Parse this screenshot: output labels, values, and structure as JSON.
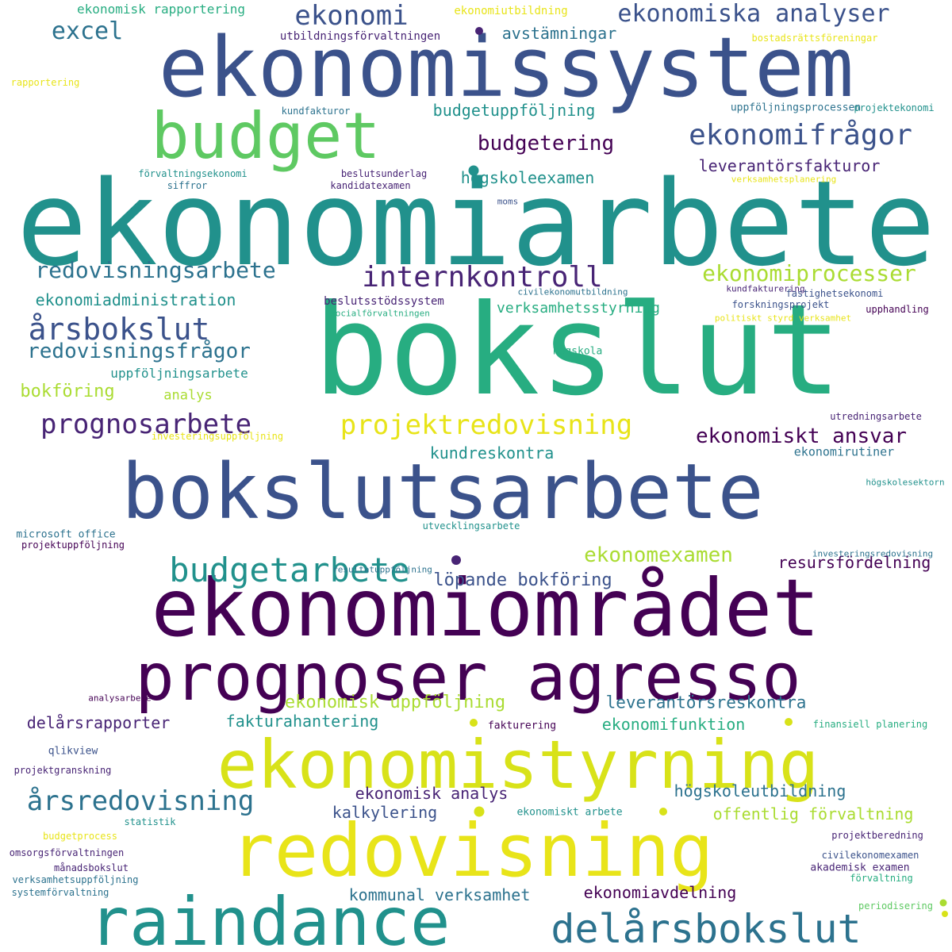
{
  "palette": {
    "c1": "#440154",
    "c2": "#482475",
    "c3": "#3b528b",
    "c4": "#2c728e",
    "c5": "#21918c",
    "c6": "#27ad81",
    "c7": "#5ec962",
    "c8": "#aadc32",
    "c9": "#d8e219",
    "c10": "#e8e419"
  },
  "words": [
    {
      "text": "ekonomiarbete",
      "color": "c5"
    },
    {
      "text": "bokslut",
      "color": "c6"
    },
    {
      "text": "ekonomissystem",
      "color": "c3"
    },
    {
      "text": "budget",
      "color": "c7"
    },
    {
      "text": "bokslutsarbete",
      "color": "c3"
    },
    {
      "text": "ekonomiområdet",
      "color": "c1"
    },
    {
      "text": "prognoser agresso",
      "color": "c1"
    },
    {
      "text": "ekonomistyrning",
      "color": "c9"
    },
    {
      "text": "redovisning",
      "color": "c10"
    },
    {
      "text": "raindance",
      "color": "c5"
    },
    {
      "text": "delårsbokslut",
      "color": "c4"
    },
    {
      "text": "ekonomi",
      "color": "c3"
    },
    {
      "text": "ekonomiska analyser",
      "color": "c3"
    },
    {
      "text": "excel",
      "color": "c4"
    },
    {
      "text": "avstämningar",
      "color": "c4"
    },
    {
      "text": "budgetuppföljning",
      "color": "c5"
    },
    {
      "text": "budgetering",
      "color": "c1"
    },
    {
      "text": "ekonomifrågor",
      "color": "c3"
    },
    {
      "text": "leverantörsfakturor",
      "color": "c2"
    },
    {
      "text": "högskoleexamen",
      "color": "c5"
    },
    {
      "text": "redovisningsarbete",
      "color": "c4"
    },
    {
      "text": "internkontroll",
      "color": "c2"
    },
    {
      "text": "ekonomiprocesser",
      "color": "c8"
    },
    {
      "text": "ekonomiadministration",
      "color": "c5"
    },
    {
      "text": "årsbokslut",
      "color": "c3"
    },
    {
      "text": "redovisningsfrågor",
      "color": "c4"
    },
    {
      "text": "uppföljningsarbete",
      "color": "c5"
    },
    {
      "text": "bokföring",
      "color": "c8"
    },
    {
      "text": "analys",
      "color": "c8"
    },
    {
      "text": "prognosarbete",
      "color": "c2"
    },
    {
      "text": "projektredovisning",
      "color": "c10"
    },
    {
      "text": "ekonomiskt ansvar",
      "color": "c1"
    },
    {
      "text": "kundreskontra",
      "color": "c5"
    },
    {
      "text": "ekonomirutiner",
      "color": "c4"
    },
    {
      "text": "budgetarbete",
      "color": "c5"
    },
    {
      "text": "ekonomexamen",
      "color": "c8"
    },
    {
      "text": "resursfördelning",
      "color": "c1"
    },
    {
      "text": "löpande bokföring",
      "color": "c3"
    },
    {
      "text": "verksamhetsstyrning",
      "color": "c6"
    },
    {
      "text": "beslutsstödssystem",
      "color": "c2"
    },
    {
      "text": "ekonomisk uppföljning",
      "color": "c8"
    },
    {
      "text": "leverantörsreskontra",
      "color": "c4"
    },
    {
      "text": "delårsrapporter",
      "color": "c2"
    },
    {
      "text": "fakturahantering",
      "color": "c5"
    },
    {
      "text": "ekonomifunktion",
      "color": "c6"
    },
    {
      "text": "årsredovisning",
      "color": "c4"
    },
    {
      "text": "ekonomisk analys",
      "color": "c2"
    },
    {
      "text": "högskoleutbildning",
      "color": "c4"
    },
    {
      "text": "kalkylering",
      "color": "c3"
    },
    {
      "text": "offentlig förvaltning",
      "color": "c8"
    },
    {
      "text": "kommunal verksamhet",
      "color": "c4"
    },
    {
      "text": "ekonomiavdelning",
      "color": "c1"
    },
    {
      "text": "ekonomisk rapportering",
      "color": "c6"
    },
    {
      "text": "ekonomiutbildning",
      "color": "c10"
    },
    {
      "text": "utbildningsförvaltningen",
      "color": "c2"
    },
    {
      "text": "bostadsrättsföreningar",
      "color": "c10"
    },
    {
      "text": "rapportering",
      "color": "c10"
    },
    {
      "text": "kundfakturor",
      "color": "c4"
    },
    {
      "text": "uppföljningsprocessen",
      "color": "c4"
    },
    {
      "text": "projektekonomi",
      "color": "c5"
    },
    {
      "text": "förvaltningsekonomi",
      "color": "c5"
    },
    {
      "text": "beslutsunderlag",
      "color": "c2"
    },
    {
      "text": "siffror",
      "color": "c4"
    },
    {
      "text": "kandidatexamen",
      "color": "c2"
    },
    {
      "text": "verksamhetsplanering",
      "color": "c10"
    },
    {
      "text": "moms",
      "color": "c3"
    },
    {
      "text": "kundfakturering",
      "color": "c2"
    },
    {
      "text": "civilekonomutbildning",
      "color": "c4"
    },
    {
      "text": "fastighetsekonomi",
      "color": "c3"
    },
    {
      "text": "socialförvaltningen",
      "color": "c6"
    },
    {
      "text": "forskningsprojekt",
      "color": "c3"
    },
    {
      "text": "upphandling",
      "color": "c1"
    },
    {
      "text": "politiskt styrd verksamhet",
      "color": "c10"
    },
    {
      "text": "högskola",
      "color": "c6"
    },
    {
      "text": "utredningsarbete",
      "color": "c2"
    },
    {
      "text": "investeringsuppföljning",
      "color": "c10"
    },
    {
      "text": "högskolesektorn",
      "color": "c5"
    },
    {
      "text": "microsoft office",
      "color": "c4"
    },
    {
      "text": "projektuppföljning",
      "color": "c1"
    },
    {
      "text": "utvecklingsarbete",
      "color": "c5"
    },
    {
      "text": "investeringsredovisning",
      "color": "c4"
    },
    {
      "text": "resultatuppföljning",
      "color": "c4"
    },
    {
      "text": "analysarbete",
      "color": "c1"
    },
    {
      "text": "fakturering",
      "color": "c1"
    },
    {
      "text": "finansiell planering",
      "color": "c6"
    },
    {
      "text": "qlikview",
      "color": "c3"
    },
    {
      "text": "projektgranskning",
      "color": "c2"
    },
    {
      "text": "ekonomiskt arbete",
      "color": "c5"
    },
    {
      "text": "statistik",
      "color": "c5"
    },
    {
      "text": "budgetprocess",
      "color": "c10"
    },
    {
      "text": "projektberedning",
      "color": "c2"
    },
    {
      "text": "omsorgsförvaltningen",
      "color": "c2"
    },
    {
      "text": "civilekonomexamen",
      "color": "c3"
    },
    {
      "text": "månadsbokslut",
      "color": "c2"
    },
    {
      "text": "akademisk examen",
      "color": "c2"
    },
    {
      "text": "verksamhetsuppföljning",
      "color": "c4"
    },
    {
      "text": "förvaltning",
      "color": "c6"
    },
    {
      "text": "systemförvaltning",
      "color": "c4"
    },
    {
      "text": "periodisering",
      "color": "c7"
    }
  ],
  "dot_colors": [
    "c2",
    "c5",
    "c2",
    "c9",
    "c9",
    "c9",
    "c9",
    "c8",
    "c9"
  ]
}
